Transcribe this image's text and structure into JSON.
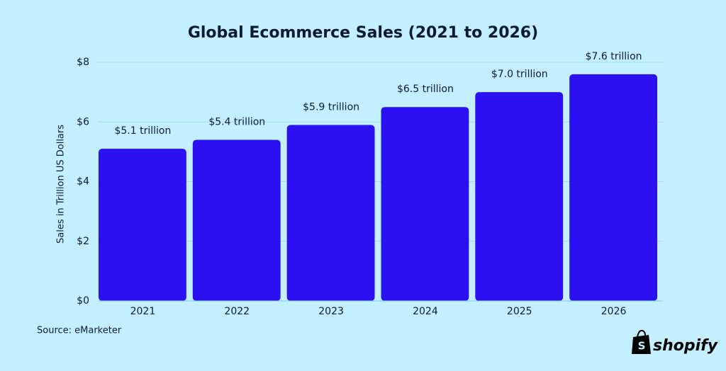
{
  "chart_data": {
    "type": "bar",
    "title": "Global Ecommerce Sales (2021 to 2026)",
    "categories": [
      "2021",
      "2022",
      "2023",
      "2024",
      "2025",
      "2026"
    ],
    "values": [
      5.1,
      5.4,
      5.9,
      6.5,
      7.0,
      7.6
    ],
    "value_labels": [
      "$5.1 trillion",
      "$5.4 trillion",
      "$5.9 trillion",
      "$6.5 trillion",
      "$7.0 trillion",
      "$7.6 trillion"
    ],
    "color": "#2b10f2",
    "y_label": "Sales in Trillion US Dollars",
    "ylim": [
      0,
      8
    ],
    "yticks": [
      {
        "value": 0,
        "label": "$0"
      },
      {
        "value": 2,
        "label": "$2"
      },
      {
        "value": 4,
        "label": "$4"
      },
      {
        "value": 6,
        "label": "$6"
      },
      {
        "value": 8,
        "label": "$8"
      }
    ],
    "grid": true,
    "source": "Source: eMarketer",
    "brand": "shopify"
  }
}
